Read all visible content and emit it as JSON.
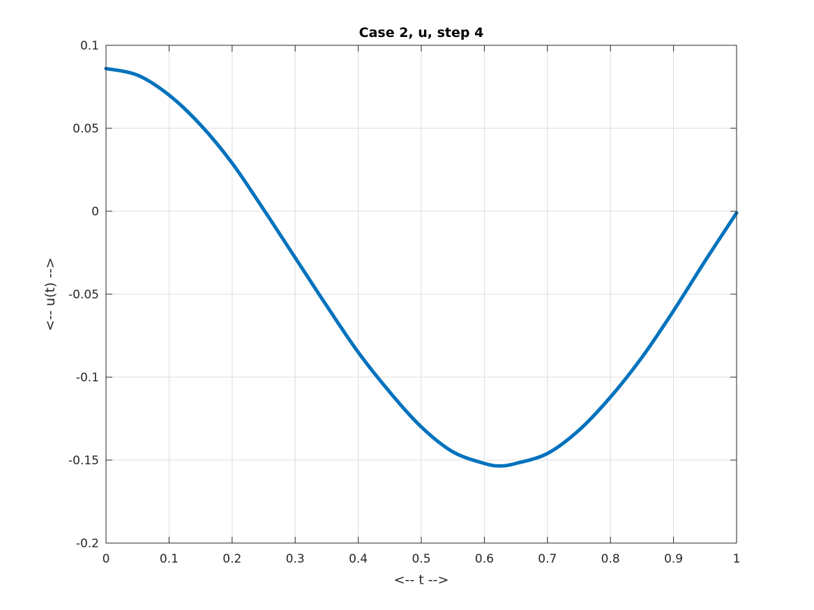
{
  "chart_data": {
    "type": "line",
    "title": "Case 2, u, step 4",
    "xlabel": "<-- t -->",
    "ylabel": "<-- u(t) -->",
    "xlim": [
      0,
      1
    ],
    "ylim": [
      -0.2,
      0.1
    ],
    "xticks": [
      0,
      0.1,
      0.2,
      0.3,
      0.4,
      0.5,
      0.6,
      0.7,
      0.8,
      0.9,
      1
    ],
    "xtick_labels": [
      "0",
      "0.1",
      "0.2",
      "0.3",
      "0.4",
      "0.5",
      "0.6",
      "0.7",
      "0.8",
      "0.9",
      "1"
    ],
    "yticks": [
      -0.2,
      -0.15,
      -0.1,
      -0.05,
      0,
      0.05,
      0.1
    ],
    "ytick_labels": [
      "-0.2",
      "-0.15",
      "-0.1",
      "-0.05",
      "0",
      "0.05",
      "0.1"
    ],
    "grid": true,
    "series": [
      {
        "color": "#0072BD",
        "x": [
          0,
          0.05,
          0.1,
          0.15,
          0.2,
          0.25,
          0.3,
          0.35,
          0.4,
          0.45,
          0.5,
          0.55,
          0.6,
          0.625,
          0.65,
          0.7,
          0.75,
          0.8,
          0.85,
          0.9,
          0.95,
          1
        ],
        "y": [
          0.086,
          0.082,
          0.07,
          0.052,
          0.029,
          0.001,
          -0.028,
          -0.057,
          -0.085,
          -0.109,
          -0.13,
          -0.145,
          -0.152,
          -0.1535,
          -0.152,
          -0.146,
          -0.132,
          -0.112,
          -0.088,
          -0.06,
          -0.03,
          -0.001
        ]
      }
    ]
  }
}
